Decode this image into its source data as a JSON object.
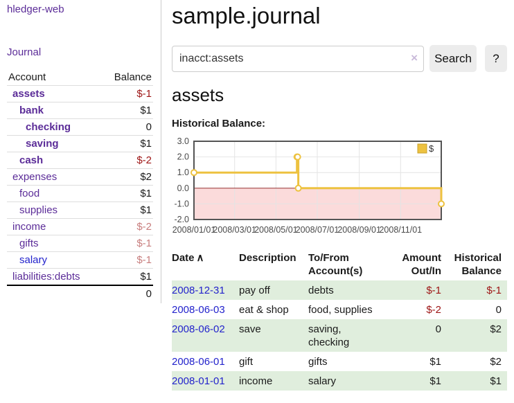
{
  "colors": {
    "purple": "#5b2c98",
    "blue_link": "#2323cc",
    "negative_strong": "#9d1414",
    "negative_muted": "#c87e7e",
    "row_green": "#e0eedd",
    "chart_line": "#edc240",
    "chart_line_edge": "#c9a22e",
    "chart_border": "#545454",
    "chart_grid": "#e4e4e4",
    "chart_zero": "#953030",
    "chart_negative_fill": "#fbdbdb",
    "button_bg": "#ececec",
    "divider": "#cccccc",
    "row_border": "#dddddd",
    "axis_text": "#4a4a4a",
    "clear_icon": "#c9bada"
  },
  "sidebar": {
    "brand": "hledger-web",
    "nav": {
      "journal": "Journal"
    },
    "accounts_table": {
      "headers": {
        "account": "Account",
        "balance": "Balance"
      },
      "rows": [
        {
          "name": "assets",
          "level": 1,
          "bold": true,
          "balance": "$-1",
          "balance_color": "negative-strong",
          "link_color": "purple"
        },
        {
          "name": "bank",
          "level": 2,
          "bold": true,
          "balance": "$1",
          "balance_color": "normal",
          "link_color": "purple"
        },
        {
          "name": "checking",
          "level": 3,
          "bold": true,
          "balance": "0",
          "balance_color": "normal",
          "link_color": "purple"
        },
        {
          "name": "saving",
          "level": 3,
          "bold": true,
          "balance": "$1",
          "balance_color": "normal",
          "link_color": "purple"
        },
        {
          "name": "cash",
          "level": 2,
          "bold": true,
          "balance": "$-2",
          "balance_color": "negative-strong",
          "link_color": "purple"
        },
        {
          "name": "expenses",
          "level": 1,
          "bold": false,
          "balance": "$2",
          "balance_color": "normal",
          "link_color": "purple"
        },
        {
          "name": "food",
          "level": 2,
          "bold": false,
          "balance": "$1",
          "balance_color": "normal",
          "link_color": "purple"
        },
        {
          "name": "supplies",
          "level": 2,
          "bold": false,
          "balance": "$1",
          "balance_color": "normal",
          "link_color": "purple"
        },
        {
          "name": "income",
          "level": 1,
          "bold": false,
          "balance": "$-2",
          "balance_color": "negative-muted",
          "link_color": "purple"
        },
        {
          "name": "gifts",
          "level": 2,
          "bold": false,
          "balance": "$-1",
          "balance_color": "negative-muted",
          "link_color": "purple"
        },
        {
          "name": "salary",
          "level": 2,
          "bold": false,
          "balance": "$-1",
          "balance_color": "negative-muted",
          "link_color": "blue"
        },
        {
          "name": "liabilities:debts",
          "level": 1,
          "bold": false,
          "balance": "$1",
          "balance_color": "normal",
          "link_color": "purple"
        }
      ],
      "total": "0"
    }
  },
  "header": {
    "title": "sample.journal"
  },
  "search": {
    "query": "inacct:assets",
    "clear_icon": "×",
    "search_label": "Search",
    "help_label": "?"
  },
  "account_page": {
    "heading": "assets",
    "chart_label": "Historical Balance:"
  },
  "chart_data": {
    "type": "line",
    "step": true,
    "title": "Historical Balance",
    "series": [
      {
        "name": "$",
        "color": "#edc240",
        "points": [
          [
            "2008-01-01",
            1.0
          ],
          [
            "2008-06-01",
            2.0
          ],
          [
            "2008-06-02",
            2.0
          ],
          [
            "2008-06-03",
            0.0
          ],
          [
            "2008-12-31",
            -1.0
          ]
        ]
      }
    ],
    "x_range": [
      "2008-01-01",
      "2008-12-31"
    ],
    "x_ticks": [
      "2008/01/01",
      "2008/03/01",
      "2008/05/01",
      "2008/07/01",
      "2008/09/01",
      "2008/11/01"
    ],
    "y_ticks": [
      "3.0",
      "2.0",
      "1.0",
      "0.0",
      "-1.0",
      "-2.0"
    ],
    "ylim": [
      -2.0,
      3.0
    ],
    "grid": true,
    "legend_position": "top-right",
    "negative_region_shaded": true
  },
  "register_table": {
    "headers": {
      "date": "Date",
      "sort_icon": "∧",
      "description": "Description",
      "account": "To/From Account(s)",
      "amount": "Amount Out/In",
      "balance": "Historical Balance"
    },
    "rows": [
      {
        "date": "2008-12-31",
        "description": "pay off",
        "account": "debts",
        "amount": "$-1",
        "balance": "$-1"
      },
      {
        "date": "2008-06-03",
        "description": "eat & shop",
        "account": "food, supplies",
        "amount": "$-2",
        "balance": "0"
      },
      {
        "date": "2008-06-02",
        "description": "save",
        "account": "saving, checking",
        "amount": "0",
        "balance": "$2"
      },
      {
        "date": "2008-06-01",
        "description": "gift",
        "account": "gifts",
        "amount": "$1",
        "balance": "$2"
      },
      {
        "date": "2008-01-01",
        "description": "income",
        "account": "salary",
        "amount": "$1",
        "balance": "$1"
      }
    ]
  }
}
